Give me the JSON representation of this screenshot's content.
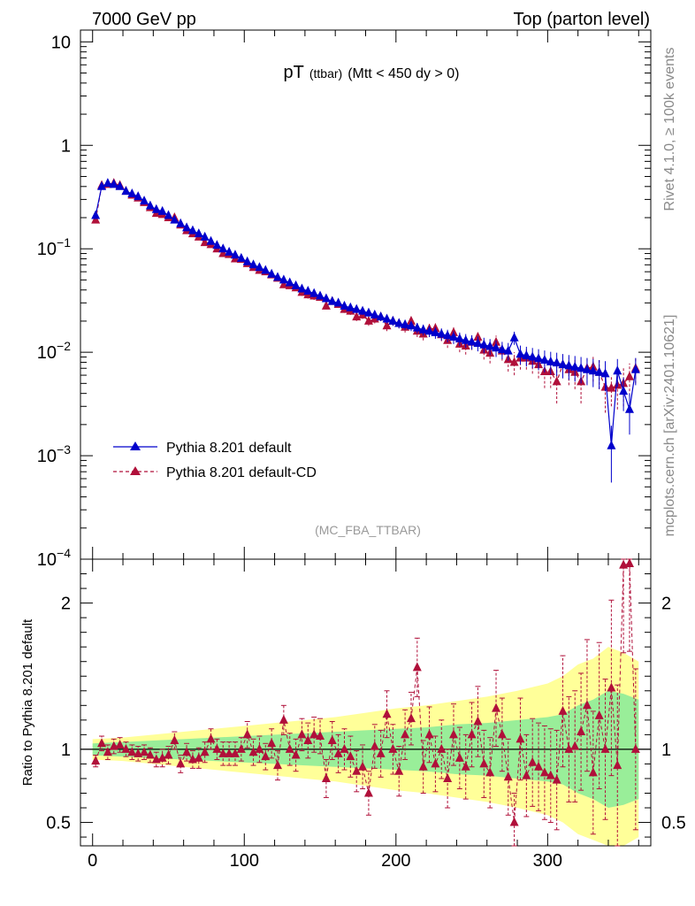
{
  "header": {
    "left": "7000 GeV pp",
    "right": "Top (parton level)"
  },
  "side_labels": {
    "rivet": "Rivet 4.1.0, ≥ 100k events",
    "mcplots": "mcplots.cern.ch [arXiv:2401.10621]"
  },
  "chart_data": [
    {
      "type": "line",
      "panel": "main",
      "title": "pT",
      "title_sub": "(ttbar)",
      "title_cut": "(Mtt < 450 dy > 0)",
      "watermark": "(MC_FBA_TTBAR)",
      "yscale": "log",
      "ylim": [
        0.0001,
        13
      ],
      "xlim": [
        -8,
        368
      ],
      "y_ticks": [
        {
          "value": 10,
          "base": "10",
          "exp": ""
        },
        {
          "value": 1,
          "base": "1",
          "exp": ""
        },
        {
          "value": 0.1,
          "base": "10",
          "exp": "−1"
        },
        {
          "value": 0.01,
          "base": "10",
          "exp": "−2"
        },
        {
          "value": 0.001,
          "base": "10",
          "exp": "−3"
        },
        {
          "value": 0.0001,
          "base": "10",
          "exp": "−4"
        }
      ],
      "legend": [
        {
          "label": "Pythia 8.201 default",
          "color": "#0000cc",
          "style": "solid"
        },
        {
          "label": "Pythia 8.201 default-CD",
          "color": "#b0103a",
          "style": "dashed"
        }
      ],
      "series": [
        {
          "name": "Pythia 8.201 default",
          "color": "#0000cc",
          "x": [
            2,
            6,
            10,
            14,
            18,
            22,
            26,
            30,
            34,
            38,
            42,
            46,
            50,
            54,
            58,
            62,
            66,
            70,
            74,
            78,
            82,
            86,
            90,
            94,
            98,
            102,
            106,
            110,
            114,
            118,
            122,
            126,
            130,
            134,
            138,
            142,
            146,
            150,
            154,
            158,
            162,
            166,
            170,
            174,
            178,
            182,
            186,
            190,
            194,
            198,
            202,
            206,
            210,
            214,
            218,
            222,
            226,
            230,
            234,
            238,
            242,
            246,
            250,
            254,
            258,
            262,
            266,
            270,
            274,
            278,
            282,
            286,
            290,
            294,
            298,
            302,
            306,
            310,
            314,
            318,
            322,
            326,
            330,
            334,
            338,
            342,
            346,
            350,
            354,
            358
          ],
          "y": [
            0.21,
            0.4,
            0.43,
            0.42,
            0.4,
            0.36,
            0.34,
            0.32,
            0.29,
            0.26,
            0.24,
            0.23,
            0.21,
            0.19,
            0.175,
            0.16,
            0.15,
            0.14,
            0.13,
            0.118,
            0.108,
            0.1,
            0.093,
            0.087,
            0.081,
            0.075,
            0.07,
            0.066,
            0.062,
            0.057,
            0.053,
            0.05,
            0.047,
            0.044,
            0.041,
            0.039,
            0.037,
            0.035,
            0.033,
            0.031,
            0.03,
            0.028,
            0.027,
            0.026,
            0.025,
            0.024,
            0.023,
            0.022,
            0.021,
            0.02,
            0.019,
            0.0185,
            0.018,
            0.0172,
            0.0165,
            0.016,
            0.0155,
            0.015,
            0.0145,
            0.014,
            0.0135,
            0.013,
            0.0126,
            0.0122,
            0.0118,
            0.0114,
            0.011,
            0.0106,
            0.0103,
            0.0138,
            0.0096,
            0.0093,
            0.009,
            0.0087,
            0.0084,
            0.0081,
            0.0079,
            0.0076,
            0.0074,
            0.0072,
            0.007,
            0.0068,
            0.0066,
            0.0064,
            0.0062,
            0.00125,
            0.0066,
            0.0042,
            0.0028,
            0.0068
          ],
          "err": [
            0.01,
            0.02,
            0.02,
            0.02,
            0.02,
            0.016,
            0.015,
            0.014,
            0.012,
            0.011,
            0.01,
            0.009,
            0.008,
            0.008,
            0.007,
            0.006,
            0.006,
            0.005,
            0.005,
            0.005,
            0.004,
            0.004,
            0.004,
            0.003,
            0.003,
            0.003,
            0.003,
            0.003,
            0.003,
            0.003,
            0.003,
            0.003,
            0.003,
            0.003,
            0.003,
            0.003,
            0.003,
            0.002,
            0.002,
            0.002,
            0.002,
            0.002,
            0.002,
            0.002,
            0.002,
            0.002,
            0.002,
            0.002,
            0.002,
            0.002,
            0.002,
            0.002,
            0.002,
            0.002,
            0.002,
            0.002,
            0.002,
            0.002,
            0.002,
            0.002,
            0.002,
            0.002,
            0.002,
            0.002,
            0.002,
            0.002,
            0.002,
            0.002,
            0.002,
            0.002,
            0.002,
            0.002,
            0.002,
            0.002,
            0.002,
            0.002,
            0.002,
            0.002,
            0.002,
            0.002,
            0.002,
            0.002,
            0.002,
            0.002,
            0.002,
            0.0007,
            0.002,
            0.0015,
            0.0012,
            0.002
          ]
        },
        {
          "name": "Pythia 8.201 default-CD",
          "color": "#b0103a",
          "x": [
            2,
            6,
            10,
            14,
            18,
            22,
            26,
            30,
            34,
            38,
            42,
            46,
            50,
            54,
            58,
            62,
            66,
            70,
            74,
            78,
            82,
            86,
            90,
            94,
            98,
            102,
            106,
            110,
            114,
            118,
            122,
            126,
            130,
            134,
            138,
            142,
            146,
            150,
            154,
            158,
            162,
            166,
            170,
            174,
            178,
            182,
            186,
            190,
            194,
            198,
            202,
            206,
            210,
            214,
            218,
            222,
            226,
            230,
            234,
            238,
            242,
            246,
            250,
            254,
            258,
            262,
            266,
            270,
            274,
            278,
            282,
            286,
            290,
            294,
            298,
            302,
            306,
            310,
            314,
            318,
            322,
            326,
            330,
            334,
            338,
            342,
            346,
            350,
            354,
            358
          ],
          "y": [
            0.19,
            0.41,
            0.42,
            0.43,
            0.41,
            0.36,
            0.33,
            0.31,
            0.28,
            0.25,
            0.22,
            0.215,
            0.2,
            0.2,
            0.17,
            0.15,
            0.14,
            0.13,
            0.115,
            0.11,
            0.1,
            0.09,
            0.088,
            0.08,
            0.079,
            0.072,
            0.066,
            0.062,
            0.06,
            0.056,
            0.052,
            0.045,
            0.044,
            0.042,
            0.038,
            0.036,
            0.035,
            0.034,
            0.028,
            0.031,
            0.029,
            0.026,
            0.025,
            0.022,
            0.023,
            0.02,
            0.021,
            0.022,
            0.018,
            0.02,
            0.019,
            0.0175,
            0.02,
            0.016,
            0.015,
            0.0168,
            0.017,
            0.0148,
            0.013,
            0.0155,
            0.012,
            0.0115,
            0.0125,
            0.014,
            0.0105,
            0.0098,
            0.0125,
            0.0103,
            0.0085,
            0.008,
            0.0088,
            0.0088,
            0.0082,
            0.0076,
            0.0065,
            0.0065,
            0.0052,
            0.0076,
            0.0068,
            0.0064,
            0.0052,
            0.007,
            0.0072,
            0.0064,
            0.0046,
            0.0045,
            0.0048,
            0.005,
            0.0058,
            0.007
          ],
          "err": [
            0.01,
            0.02,
            0.02,
            0.02,
            0.02,
            0.016,
            0.015,
            0.014,
            0.012,
            0.011,
            0.01,
            0.009,
            0.008,
            0.008,
            0.007,
            0.006,
            0.006,
            0.005,
            0.005,
            0.005,
            0.004,
            0.004,
            0.004,
            0.003,
            0.003,
            0.003,
            0.003,
            0.003,
            0.003,
            0.003,
            0.003,
            0.003,
            0.003,
            0.003,
            0.003,
            0.003,
            0.003,
            0.002,
            0.002,
            0.002,
            0.002,
            0.002,
            0.002,
            0.002,
            0.002,
            0.002,
            0.002,
            0.002,
            0.002,
            0.002,
            0.002,
            0.002,
            0.002,
            0.002,
            0.002,
            0.002,
            0.002,
            0.002,
            0.002,
            0.002,
            0.002,
            0.002,
            0.002,
            0.002,
            0.002,
            0.002,
            0.002,
            0.002,
            0.002,
            0.002,
            0.002,
            0.002,
            0.002,
            0.002,
            0.002,
            0.002,
            0.002,
            0.002,
            0.002,
            0.002,
            0.002,
            0.002,
            0.002,
            0.002,
            0.002,
            0.0015,
            0.002,
            0.002,
            0.002,
            0.002
          ]
        }
      ]
    },
    {
      "type": "line",
      "panel": "ratio",
      "ylabel": "Ratio to Pythia 8.201 default",
      "ylim": [
        0.34,
        2.3
      ],
      "xlim": [
        -8,
        368
      ],
      "y_ticks": [
        0.5,
        1,
        2
      ],
      "y_tick_labels": [
        "0.5",
        "1",
        "2"
      ],
      "x_ticks": [
        0,
        100,
        200,
        300
      ],
      "x_tick_labels": [
        "0",
        "100",
        "200",
        "300"
      ],
      "reference_line": 1,
      "bands": {
        "x": [
          0,
          20,
          40,
          60,
          80,
          100,
          120,
          140,
          160,
          180,
          200,
          220,
          240,
          260,
          280,
          300,
          310,
          320,
          330,
          340,
          350,
          360
        ],
        "yellow_half_width": [
          0.07,
          0.08,
          0.1,
          0.12,
          0.14,
          0.16,
          0.18,
          0.2,
          0.22,
          0.25,
          0.28,
          0.3,
          0.33,
          0.36,
          0.4,
          0.45,
          0.5,
          0.58,
          0.62,
          0.7,
          0.66,
          0.6
        ],
        "green_half_width": [
          0.04,
          0.05,
          0.06,
          0.07,
          0.08,
          0.09,
          0.1,
          0.11,
          0.12,
          0.13,
          0.14,
          0.15,
          0.17,
          0.18,
          0.2,
          0.22,
          0.24,
          0.3,
          0.34,
          0.4,
          0.38,
          0.34
        ],
        "yellow_color": "#ffff99",
        "green_color": "#99ee99"
      },
      "series": [
        {
          "name": "Pythia 8.201 default-CD",
          "color": "#b0103a",
          "x": [
            2,
            6,
            10,
            14,
            18,
            22,
            26,
            30,
            34,
            38,
            42,
            46,
            50,
            54,
            58,
            62,
            66,
            70,
            74,
            78,
            82,
            86,
            90,
            94,
            98,
            102,
            106,
            110,
            114,
            118,
            122,
            126,
            130,
            134,
            138,
            142,
            146,
            150,
            154,
            158,
            162,
            166,
            170,
            174,
            178,
            182,
            186,
            190,
            194,
            198,
            202,
            206,
            210,
            214,
            218,
            222,
            226,
            230,
            234,
            238,
            242,
            246,
            250,
            254,
            258,
            262,
            266,
            270,
            274,
            278,
            282,
            286,
            290,
            294,
            298,
            302,
            306,
            310,
            314,
            318,
            322,
            326,
            330,
            334,
            338,
            342,
            346,
            350,
            354,
            358
          ],
          "y": [
            0.92,
            1.04,
            0.98,
            1.02,
            1.03,
            1.0,
            0.98,
            0.97,
            0.98,
            0.96,
            0.93,
            0.94,
            0.96,
            1.06,
            0.9,
            0.98,
            0.93,
            0.94,
            0.98,
            1.07,
            1.0,
            0.97,
            0.97,
            0.97,
            1.0,
            1.1,
            0.98,
            1.0,
            0.95,
            1.04,
            0.89,
            1.2,
            1.0,
            0.96,
            1.1,
            1.06,
            1.1,
            1.09,
            0.8,
            1.06,
            0.97,
            1.0,
            0.95,
            0.85,
            0.88,
            0.7,
            1.02,
            0.97,
            1.24,
            1.0,
            0.85,
            1.1,
            1.21,
            1.56,
            0.88,
            1.1,
            0.9,
            1.0,
            0.8,
            1.1,
            0.94,
            0.88,
            1.1,
            1.19,
            0.9,
            0.84,
            1.28,
            1.1,
            0.81,
            0.5,
            1.07,
            0.82,
            0.91,
            0.88,
            0.84,
            0.82,
            0.79,
            1.26,
            1.0,
            1.02,
            1.12,
            1.3,
            0.84,
            1.23,
            1.0,
            1.42,
            0.89,
            2.26,
            2.27,
            1.0
          ],
          "err": [
            0.04,
            0.05,
            0.05,
            0.05,
            0.05,
            0.05,
            0.05,
            0.05,
            0.05,
            0.05,
            0.05,
            0.06,
            0.06,
            0.06,
            0.06,
            0.06,
            0.06,
            0.07,
            0.07,
            0.07,
            0.07,
            0.08,
            0.08,
            0.08,
            0.08,
            0.09,
            0.09,
            0.09,
            0.09,
            0.1,
            0.1,
            0.1,
            0.11,
            0.11,
            0.11,
            0.12,
            0.12,
            0.12,
            0.13,
            0.13,
            0.13,
            0.14,
            0.14,
            0.14,
            0.15,
            0.15,
            0.15,
            0.16,
            0.16,
            0.17,
            0.17,
            0.17,
            0.18,
            0.2,
            0.18,
            0.19,
            0.19,
            0.2,
            0.2,
            0.21,
            0.21,
            0.22,
            0.22,
            0.24,
            0.23,
            0.24,
            0.26,
            0.25,
            0.26,
            0.2,
            0.28,
            0.28,
            0.3,
            0.3,
            0.32,
            0.32,
            0.34,
            0.38,
            0.36,
            0.38,
            0.4,
            0.45,
            0.42,
            0.5,
            0.48,
            0.6,
            0.55,
            0.6,
            0.6,
            0.55
          ]
        }
      ]
    }
  ]
}
